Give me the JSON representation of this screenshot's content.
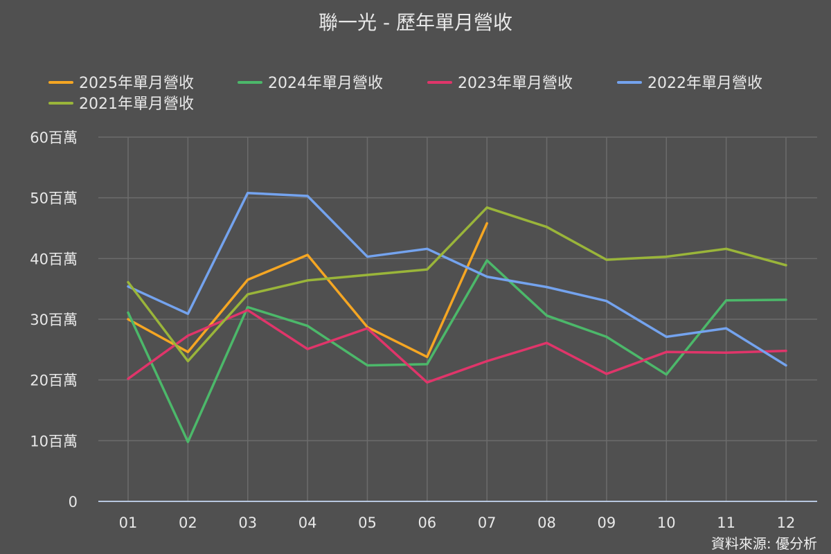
{
  "chart_data": {
    "type": "line",
    "title": "聯一光 - 歷年單月營收",
    "categories": [
      "01",
      "02",
      "03",
      "04",
      "05",
      "06",
      "07",
      "08",
      "09",
      "10",
      "11",
      "12"
    ],
    "y_tick_labels": [
      "0",
      "10百萬",
      "20百萬",
      "30百萬",
      "40百萬",
      "50百萬",
      "60百萬"
    ],
    "ylim": [
      0,
      60
    ],
    "y_unit": "百萬",
    "grid": true,
    "legend_position": "top",
    "series": [
      {
        "name": "2025年單月營收",
        "color": "#f5a623",
        "values": [
          30.0,
          24.6,
          36.5,
          40.6,
          28.7,
          23.8,
          45.8,
          null,
          null,
          null,
          null,
          null
        ]
      },
      {
        "name": "2024年單月營收",
        "color": "#4cb86a",
        "values": [
          31.1,
          9.8,
          32.0,
          28.9,
          22.4,
          22.6,
          39.7,
          30.6,
          27.1,
          20.9,
          33.1,
          33.2
        ]
      },
      {
        "name": "2023年單月營收",
        "color": "#e0356a",
        "values": [
          20.2,
          27.3,
          31.5,
          25.1,
          28.5,
          19.6,
          23.1,
          26.1,
          21.0,
          24.6,
          24.5,
          24.8
        ]
      },
      {
        "name": "2022年單月營收",
        "color": "#74a3ee",
        "values": [
          35.4,
          30.9,
          50.8,
          50.3,
          40.3,
          41.6,
          37.0,
          35.3,
          33.0,
          27.1,
          28.5,
          22.4
        ]
      },
      {
        "name": "2021年單月營收",
        "color": "#9ab53a",
        "values": [
          36.1,
          23.1,
          34.1,
          36.4,
          37.3,
          38.2,
          48.4,
          45.2,
          39.8,
          40.3,
          41.6,
          38.9
        ]
      }
    ],
    "source": "資料來源: 優分析"
  }
}
